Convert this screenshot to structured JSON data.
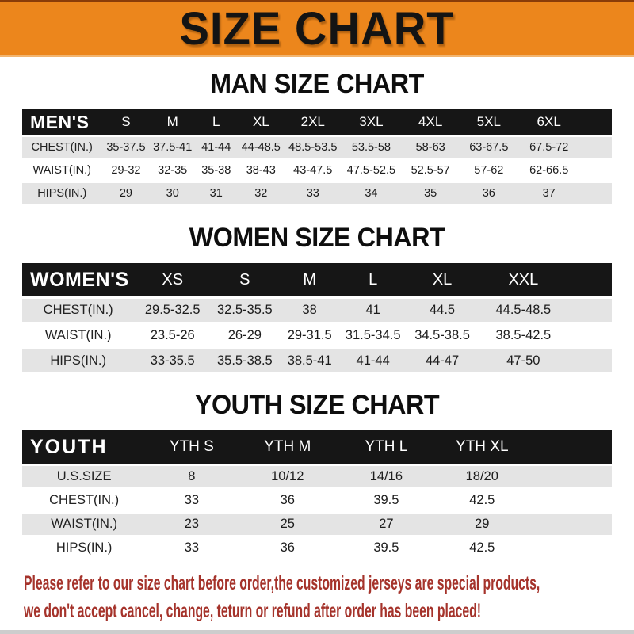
{
  "banner": {
    "title": "SIZE CHART"
  },
  "colors": {
    "banner_bg": "#EC861C",
    "header_bar_bg": "#161616",
    "row_stripe": "#E4E4E4",
    "footer_text": "#A5332B"
  },
  "sections": [
    {
      "heading": "MAN SIZE CHART",
      "table": {
        "header_label": "MEN'S",
        "columns": [
          "S",
          "M",
          "L",
          "XL",
          "2XL",
          "3XL",
          "4XL",
          "5XL",
          "6XL"
        ],
        "rows": [
          {
            "label": "CHEST(IN.)",
            "values": [
              "35-37.5",
              "37.5-41",
              "41-44",
              "44-48.5",
              "48.5-53.5",
              "53.5-58",
              "58-63",
              "63-67.5",
              "67.5-72"
            ]
          },
          {
            "label": "WAIST(IN.)",
            "values": [
              "29-32",
              "32-35",
              "35-38",
              "38-43",
              "43-47.5",
              "47.5-52.5",
              "52.5-57",
              "57-62",
              "62-66.5"
            ]
          },
          {
            "label": "HIPS(IN.)",
            "values": [
              "29",
              "30",
              "31",
              "32",
              "33",
              "34",
              "35",
              "36",
              "37"
            ]
          }
        ]
      }
    },
    {
      "heading": "WOMEN SIZE CHART",
      "table": {
        "header_label": "WOMEN'S",
        "columns": [
          "XS",
          "S",
          "M",
          "L",
          "XL",
          "XXL"
        ],
        "rows": [
          {
            "label": "CHEST(IN.)",
            "values": [
              "29.5-32.5",
              "32.5-35.5",
              "38",
              "41",
              "44.5",
              "44.5-48.5"
            ]
          },
          {
            "label": "WAIST(IN.)",
            "values": [
              "23.5-26",
              "26-29",
              "29-31.5",
              "31.5-34.5",
              "34.5-38.5",
              "38.5-42.5"
            ]
          },
          {
            "label": "HIPS(IN.)",
            "values": [
              "33-35.5",
              "35.5-38.5",
              "38.5-41",
              "41-44",
              "44-47",
              "47-50"
            ]
          }
        ]
      }
    },
    {
      "heading": "YOUTH SIZE CHART",
      "table": {
        "header_label": "YOUTH",
        "columns": [
          "YTH S",
          "YTH M",
          "YTH L",
          "YTH XL"
        ],
        "rows": [
          {
            "label": "U.S.SIZE",
            "values": [
              "8",
              "10/12",
              "14/16",
              "18/20"
            ]
          },
          {
            "label": "CHEST(IN.)",
            "values": [
              "33",
              "36",
              "39.5",
              "42.5"
            ]
          },
          {
            "label": "WAIST(IN.)",
            "values": [
              "23",
              "25",
              "27",
              "29"
            ]
          },
          {
            "label": "HIPS(IN.)",
            "values": [
              "33",
              "36",
              "39.5",
              "42.5"
            ]
          }
        ]
      }
    }
  ],
  "footer": {
    "line1": "Please refer to our size chart before order,the customized jerseys are special products,",
    "line2": "we don't accept cancel, change, teturn or refund after order has been placed!"
  }
}
